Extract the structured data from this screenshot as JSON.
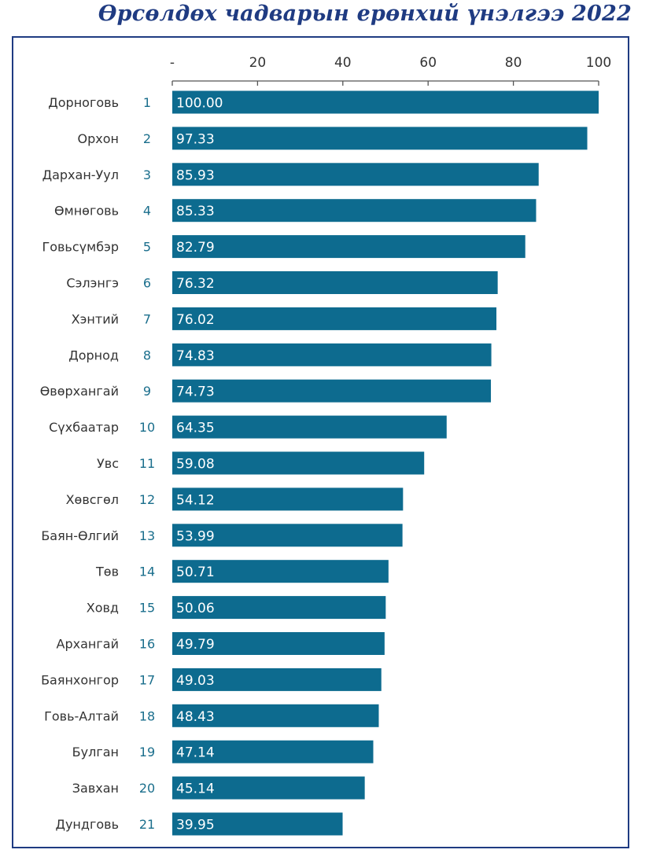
{
  "title": "Өрсөлдөх чадварын ерөнхий үнэлгээ 2022",
  "colors": {
    "bar": "#0d6b8f",
    "rank": "#1a6e8c",
    "title": "#1f3b82",
    "frame": "#1f3b82"
  },
  "chart_data": {
    "type": "bar",
    "orientation": "horizontal",
    "title": "Өрсөлдөх чадварын ерөнхий үнэлгээ 2022",
    "xlim": [
      0,
      100
    ],
    "x_ticks": [
      {
        "value": 0,
        "label": "-"
      },
      {
        "value": 20,
        "label": "20"
      },
      {
        "value": 40,
        "label": "40"
      },
      {
        "value": 60,
        "label": "60"
      },
      {
        "value": 80,
        "label": "80"
      },
      {
        "value": 100,
        "label": "100"
      }
    ],
    "x_axis_position": "top",
    "grid": false,
    "categories": [
      "Дорноговь",
      "Орхон",
      "Дархан-Уул",
      "Өмнөговь",
      "Говьсүмбэр",
      "Сэлэнгэ",
      "Хэнтий",
      "Дорнод",
      "Өвөрхангай",
      "Сүхбаатар",
      "Увс",
      "Хөвсгөл",
      "Баян-Өлгий",
      "Төв",
      "Ховд",
      "Архангай",
      "Баянхонгор",
      "Говь-Алтай",
      "Булган",
      "Завхан",
      "Дундговь"
    ],
    "ranks": [
      "1",
      "2",
      "3",
      "4",
      "5",
      "6",
      "7",
      "8",
      "9",
      "10",
      "11",
      "12",
      "13",
      "14",
      "15",
      "16",
      "17",
      "18",
      "19",
      "20",
      "21"
    ],
    "values": [
      100.0,
      97.33,
      85.93,
      85.33,
      82.79,
      76.32,
      76.02,
      74.83,
      74.73,
      64.35,
      59.08,
      54.12,
      53.99,
      50.71,
      50.06,
      49.79,
      49.03,
      48.43,
      47.14,
      45.14,
      39.95
    ],
    "value_labels": [
      "100.00",
      "97.33",
      "85.93",
      "85.33",
      "82.79",
      "76.32",
      "76.02",
      "74.83",
      "74.73",
      "64.35",
      "59.08",
      "54.12",
      "53.99",
      "50.71",
      "50.06",
      "49.79",
      "49.03",
      "48.43",
      "47.14",
      "45.14",
      "39.95"
    ]
  }
}
